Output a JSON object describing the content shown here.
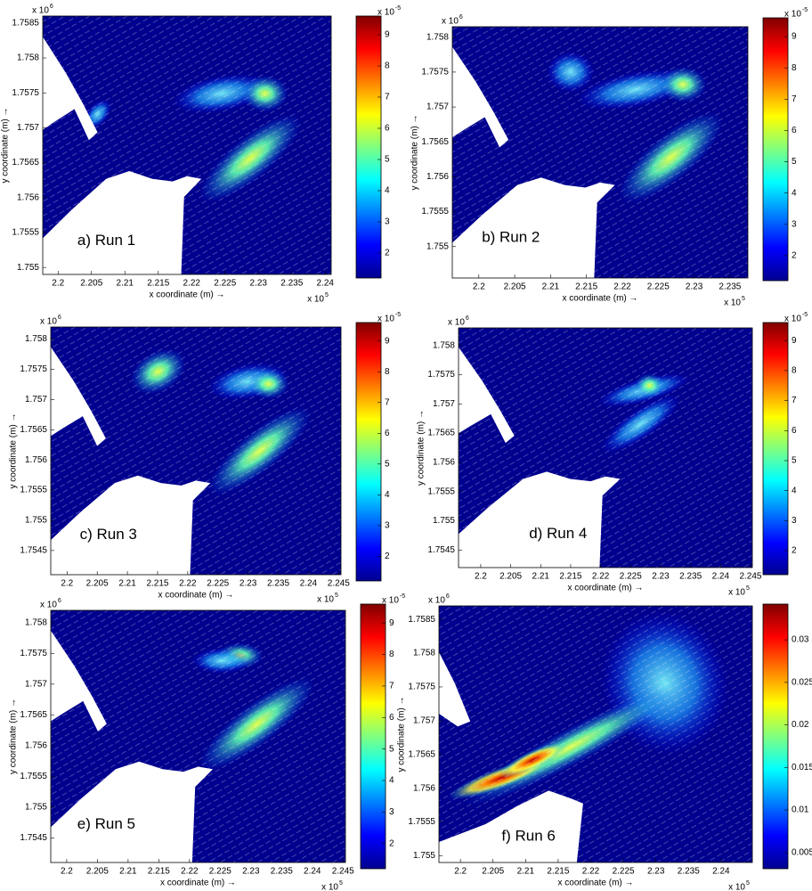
{
  "chart_data": [
    {
      "type": "heatmap",
      "label": "a) Run 1",
      "xlabel": "x coordinate (m) →",
      "ylabel": "y coordinate (m) →",
      "xlim": [
        2.1977,
        2.2409
      ],
      "ylim": [
        1.7549,
        1.7586
      ],
      "xticks": [
        2.2,
        2.205,
        2.21,
        2.215,
        2.22,
        2.225,
        2.23,
        2.235,
        2.24
      ],
      "yticks": [
        1.755,
        1.7555,
        1.756,
        1.7565,
        1.757,
        1.7575,
        1.758,
        1.7585
      ],
      "x_multiplier": {
        "text": "x 10",
        "power": 5
      },
      "y_multiplier": {
        "text": "x 10",
        "power": 6
      },
      "colorbar": {
        "colormap": "jet",
        "clim": [
          1.2,
          9.6
        ],
        "ticks": [
          2,
          3,
          4,
          5,
          6,
          7,
          8,
          9
        ],
        "multiplier": {
          "text": "x 10",
          "power": -5
        }
      }
    },
    {
      "type": "heatmap",
      "label": "b) Run 2",
      "xlabel": "x coordinate (m) →",
      "ylabel": "y coordinate (m) →",
      "xlim": [
        2.1963,
        2.2375
      ],
      "ylim": [
        1.75455,
        1.75815
      ],
      "xticks": [
        2.2,
        2.205,
        2.21,
        2.215,
        2.22,
        2.225,
        2.23,
        2.235
      ],
      "yticks": [
        1.755,
        1.7555,
        1.756,
        1.7565,
        1.757,
        1.7575,
        1.758
      ],
      "x_multiplier": {
        "text": "x 10",
        "power": 5
      },
      "y_multiplier": {
        "text": "x 10",
        "power": 6
      },
      "colorbar": {
        "colormap": "jet",
        "clim": [
          1.2,
          9.6
        ],
        "ticks": [
          2,
          3,
          4,
          5,
          6,
          7,
          8,
          9
        ],
        "multiplier": {
          "text": "x 10",
          "power": -5
        }
      }
    },
    {
      "type": "heatmap",
      "label": "c) Run 3",
      "xlabel": "x coordinate (m) →",
      "ylabel": "y coordinate (m) →",
      "xlim": [
        2.1973,
        2.2454
      ],
      "ylim": [
        1.7541,
        1.7582
      ],
      "xticks": [
        2.2,
        2.205,
        2.21,
        2.215,
        2.22,
        2.225,
        2.23,
        2.235,
        2.24,
        2.245
      ],
      "yticks": [
        1.7545,
        1.755,
        1.7555,
        1.756,
        1.7565,
        1.757,
        1.7575,
        1.758
      ],
      "x_multiplier": {
        "text": "x 10",
        "power": 5
      },
      "y_multiplier": {
        "text": "x 10",
        "power": 6
      },
      "colorbar": {
        "colormap": "jet",
        "clim": [
          1.2,
          9.6
        ],
        "ticks": [
          2,
          3,
          4,
          5,
          6,
          7,
          8,
          9
        ],
        "multiplier": {
          "text": "x 10",
          "power": -5
        }
      }
    },
    {
      "type": "heatmap",
      "label": "d) Run 4",
      "xlabel": "x coordinate (m) →",
      "ylabel": "y coordinate (m) →",
      "xlim": [
        2.1963,
        2.2453
      ],
      "ylim": [
        1.7542,
        1.7583
      ],
      "xticks": [
        2.2,
        2.205,
        2.21,
        2.215,
        2.22,
        2.225,
        2.23,
        2.235,
        2.24,
        2.245
      ],
      "yticks": [
        1.7545,
        1.755,
        1.7555,
        1.756,
        1.7565,
        1.757,
        1.7575,
        1.758
      ],
      "x_multiplier": {
        "text": "x 10",
        "power": 5
      },
      "y_multiplier": {
        "text": "x 10",
        "power": 6
      },
      "colorbar": {
        "colormap": "jet",
        "clim": [
          1.2,
          9.6
        ],
        "ticks": [
          2,
          3,
          4,
          5,
          6,
          7,
          8,
          9
        ],
        "multiplier": {
          "text": "x 10",
          "power": -5
        }
      }
    },
    {
      "type": "heatmap",
      "label": "e) Run 5",
      "xlabel": "x coordinate (m) →",
      "ylabel": "y coordinate (m) →",
      "xlim": [
        2.1974,
        2.2454
      ],
      "ylim": [
        1.7541,
        1.7582
      ],
      "xticks": [
        2.2,
        2.205,
        2.21,
        2.215,
        2.22,
        2.225,
        2.23,
        2.235,
        2.24,
        2.245
      ],
      "yticks": [
        1.7545,
        1.755,
        1.7555,
        1.756,
        1.7565,
        1.757,
        1.7575,
        1.758
      ],
      "x_multiplier": {
        "text": "x 10",
        "power": 5
      },
      "y_multiplier": {
        "text": "x 10",
        "power": 6
      },
      "colorbar": {
        "colormap": "jet",
        "clim": [
          1.2,
          9.6
        ],
        "ticks": [
          2,
          3,
          4,
          5,
          6,
          7,
          8,
          9
        ],
        "multiplier": {
          "text": "x 10",
          "power": -5
        }
      }
    },
    {
      "type": "heatmap",
      "label": "f) Run 6",
      "xlabel": "x coordinate (m) →",
      "ylabel": "y coordinate (m) →",
      "xlim": [
        2.1967,
        2.2448
      ],
      "ylim": [
        1.7549,
        1.7587
      ],
      "xticks": [
        2.2,
        2.205,
        2.21,
        2.215,
        2.22,
        2.225,
        2.23,
        2.235,
        2.24
      ],
      "yticks": [
        1.755,
        1.7555,
        1.756,
        1.7565,
        1.757,
        1.7575,
        1.758,
        1.7585
      ],
      "x_multiplier": {
        "text": "x 10",
        "power": 5
      },
      "y_multiplier": {
        "text": "x 10",
        "power": 6
      },
      "colorbar": {
        "colormap": "jet",
        "clim": [
          0.0031,
          0.0342
        ],
        "ticks": [
          0.005,
          0.01,
          0.015,
          0.02,
          0.025,
          0.03
        ]
      }
    }
  ]
}
